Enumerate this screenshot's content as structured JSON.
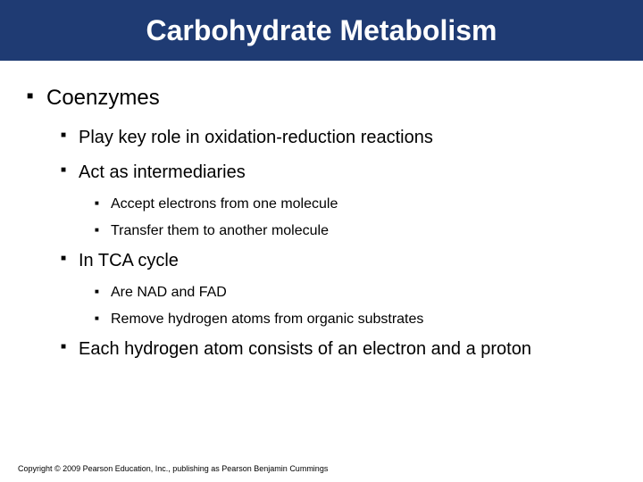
{
  "slide": {
    "title": "Carbohydrate Metabolism",
    "title_bg": "#1f3b73",
    "title_color": "#ffffff",
    "bg_color": "#ffffff",
    "text_color": "#000000",
    "title_fontsize": 32,
    "lvl1_fontsize": 24,
    "lvl2_fontsize": 20,
    "lvl3_fontsize": 16,
    "bullets": {
      "b1": "Coenzymes",
      "b1_1": "Play key role in oxidation-reduction reactions",
      "b1_2": "Act as intermediaries",
      "b1_2_1": "Accept electrons from one molecule",
      "b1_2_2": "Transfer them to another molecule",
      "b1_3": "In TCA cycle",
      "b1_3_1": "Are NAD and FAD",
      "b1_3_2": "Remove hydrogen atoms from organic substrates",
      "b1_4": "Each hydrogen atom consists of an electron and a proton"
    },
    "copyright": "Copyright © 2009 Pearson Education, Inc., publishing as Pearson Benjamin Cummings"
  }
}
